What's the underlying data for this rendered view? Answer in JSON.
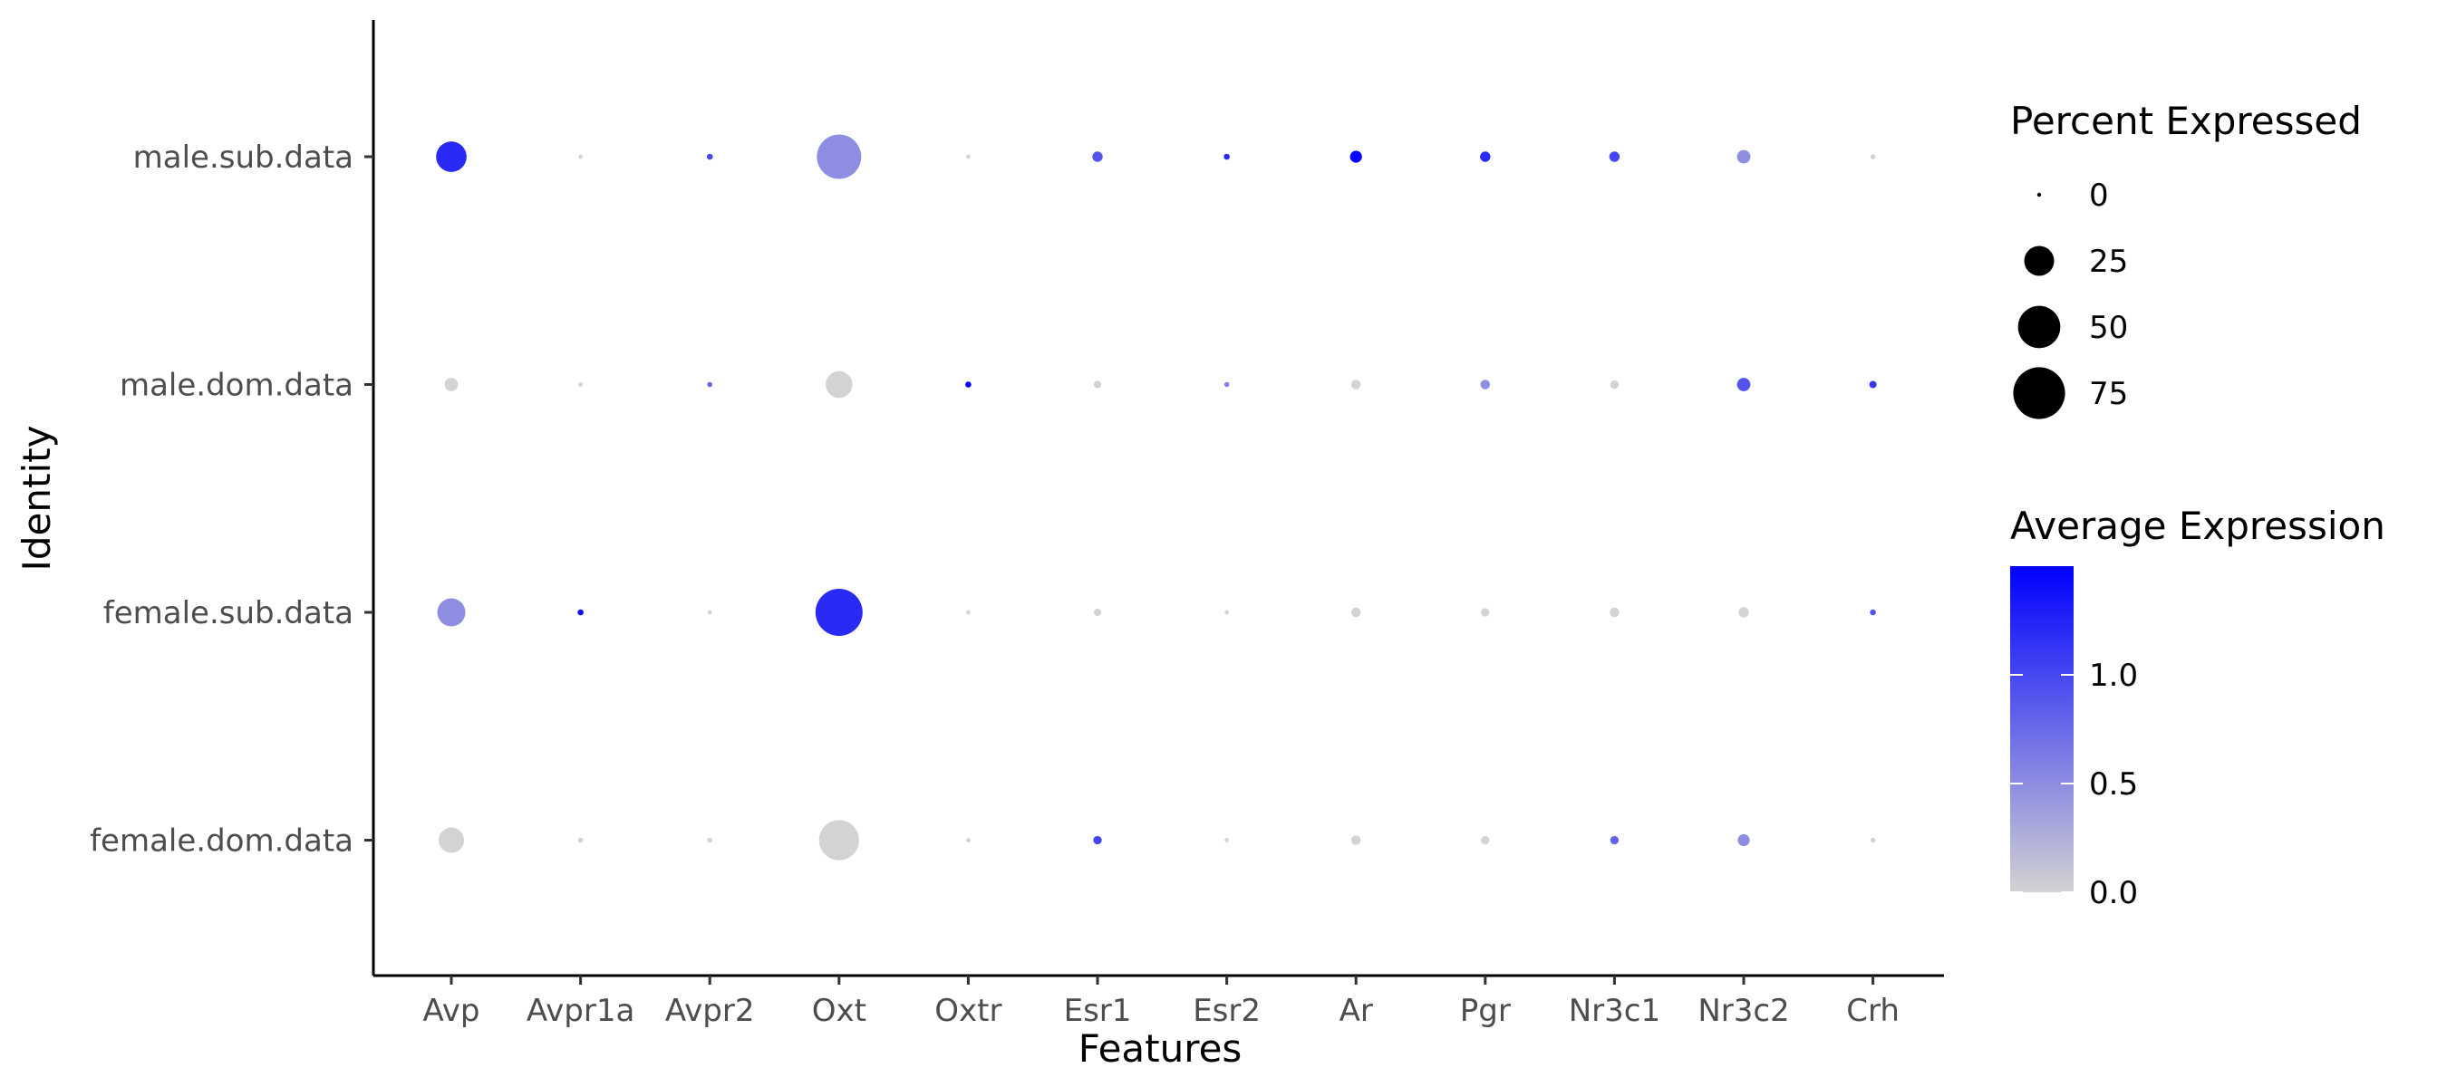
{
  "chart_data": {
    "type": "dot",
    "title": "",
    "xlabel": "Features",
    "ylabel": "Identity",
    "features": [
      "Avp",
      "Avpr1a",
      "Avpr2",
      "Oxt",
      "Oxtr",
      "Esr1",
      "Esr2",
      "Ar",
      "Pgr",
      "Nr3c1",
      "Nr3c2",
      "Crh"
    ],
    "identities": [
      "male.sub.data",
      "male.dom.data",
      "female.sub.data",
      "female.dom.data"
    ],
    "points": [
      {
        "identity": "male.sub.data",
        "feature": "Avp",
        "pct": 26,
        "avg": 1.2
      },
      {
        "identity": "male.sub.data",
        "feature": "Avpr1a",
        "pct": 0.5,
        "avg": 0.0
      },
      {
        "identity": "male.sub.data",
        "feature": "Avpr2",
        "pct": 1,
        "avg": 1.0
      },
      {
        "identity": "male.sub.data",
        "feature": "Oxt",
        "pct": 55,
        "avg": 0.5
      },
      {
        "identity": "male.sub.data",
        "feature": "Oxtr",
        "pct": 0.5,
        "avg": 0.0
      },
      {
        "identity": "male.sub.data",
        "feature": "Esr1",
        "pct": 3,
        "avg": 0.9
      },
      {
        "identity": "male.sub.data",
        "feature": "Esr2",
        "pct": 1,
        "avg": 1.2
      },
      {
        "identity": "male.sub.data",
        "feature": "Ar",
        "pct": 4,
        "avg": 1.5
      },
      {
        "identity": "male.sub.data",
        "feature": "Pgr",
        "pct": 3,
        "avg": 1.2
      },
      {
        "identity": "male.sub.data",
        "feature": "Nr3c1",
        "pct": 3,
        "avg": 1.0
      },
      {
        "identity": "male.sub.data",
        "feature": "Nr3c2",
        "pct": 5,
        "avg": 0.5
      },
      {
        "identity": "male.sub.data",
        "feature": "Crh",
        "pct": 0.7,
        "avg": 0.0
      },
      {
        "identity": "male.dom.data",
        "feature": "Avp",
        "pct": 5,
        "avg": 0.0
      },
      {
        "identity": "male.dom.data",
        "feature": "Avpr1a",
        "pct": 0.5,
        "avg": 0.0
      },
      {
        "identity": "male.dom.data",
        "feature": "Avpr2",
        "pct": 0.7,
        "avg": 0.8
      },
      {
        "identity": "male.dom.data",
        "feature": "Oxt",
        "pct": 20,
        "avg": 0.0
      },
      {
        "identity": "male.dom.data",
        "feature": "Oxtr",
        "pct": 1,
        "avg": 1.5
      },
      {
        "identity": "male.dom.data",
        "feature": "Esr1",
        "pct": 1.5,
        "avg": 0.0
      },
      {
        "identity": "male.dom.data",
        "feature": "Esr2",
        "pct": 0.7,
        "avg": 0.6
      },
      {
        "identity": "male.dom.data",
        "feature": "Ar",
        "pct": 2.5,
        "avg": 0.0
      },
      {
        "identity": "male.dom.data",
        "feature": "Pgr",
        "pct": 2.5,
        "avg": 0.5
      },
      {
        "identity": "male.dom.data",
        "feature": "Nr3c1",
        "pct": 2,
        "avg": 0.0
      },
      {
        "identity": "male.dom.data",
        "feature": "Nr3c2",
        "pct": 5,
        "avg": 0.9
      },
      {
        "identity": "male.dom.data",
        "feature": "Crh",
        "pct": 1.5,
        "avg": 1.1
      },
      {
        "identity": "female.sub.data",
        "feature": "Avp",
        "pct": 22,
        "avg": 0.5
      },
      {
        "identity": "female.sub.data",
        "feature": "Avpr1a",
        "pct": 1,
        "avg": 1.4
      },
      {
        "identity": "female.sub.data",
        "feature": "Avpr2",
        "pct": 0.5,
        "avg": 0.0
      },
      {
        "identity": "female.sub.data",
        "feature": "Oxt",
        "pct": 62,
        "avg": 1.2
      },
      {
        "identity": "female.sub.data",
        "feature": "Oxtr",
        "pct": 0.5,
        "avg": 0.0
      },
      {
        "identity": "female.sub.data",
        "feature": "Esr1",
        "pct": 1.5,
        "avg": 0.0
      },
      {
        "identity": "female.sub.data",
        "feature": "Esr2",
        "pct": 0.5,
        "avg": 0.0
      },
      {
        "identity": "female.sub.data",
        "feature": "Ar",
        "pct": 2.5,
        "avg": 0.0
      },
      {
        "identity": "female.sub.data",
        "feature": "Pgr",
        "pct": 2,
        "avg": 0.0
      },
      {
        "identity": "female.sub.data",
        "feature": "Nr3c1",
        "pct": 2.5,
        "avg": 0.0
      },
      {
        "identity": "female.sub.data",
        "feature": "Nr3c2",
        "pct": 3,
        "avg": 0.0
      },
      {
        "identity": "female.sub.data",
        "feature": "Crh",
        "pct": 1,
        "avg": 0.9
      },
      {
        "identity": "female.dom.data",
        "feature": "Avp",
        "pct": 18,
        "avg": 0.0
      },
      {
        "identity": "female.dom.data",
        "feature": "Avpr1a",
        "pct": 0.7,
        "avg": 0.0
      },
      {
        "identity": "female.dom.data",
        "feature": "Avpr2",
        "pct": 0.7,
        "avg": 0.0
      },
      {
        "identity": "female.dom.data",
        "feature": "Oxt",
        "pct": 45,
        "avg": 0.0
      },
      {
        "identity": "female.dom.data",
        "feature": "Oxtr",
        "pct": 0.5,
        "avg": 0.0
      },
      {
        "identity": "female.dom.data",
        "feature": "Esr1",
        "pct": 2,
        "avg": 1.0
      },
      {
        "identity": "female.dom.data",
        "feature": "Esr2",
        "pct": 0.5,
        "avg": 0.0
      },
      {
        "identity": "female.dom.data",
        "feature": "Ar",
        "pct": 2.5,
        "avg": 0.0
      },
      {
        "identity": "female.dom.data",
        "feature": "Pgr",
        "pct": 2,
        "avg": 0.0
      },
      {
        "identity": "female.dom.data",
        "feature": "Nr3c1",
        "pct": 2,
        "avg": 0.8
      },
      {
        "identity": "female.dom.data",
        "feature": "Nr3c2",
        "pct": 4,
        "avg": 0.5
      },
      {
        "identity": "female.dom.data",
        "feature": "Crh",
        "pct": 0.7,
        "avg": 0.0
      }
    ],
    "size_legend": {
      "title": "Percent Expressed",
      "values": [
        0,
        25,
        50,
        75
      ],
      "labels": [
        "0",
        "25",
        "50",
        "75"
      ]
    },
    "color_legend": {
      "title": "Average Expression",
      "range": [
        0,
        1.5
      ],
      "ticks": [
        0.0,
        0.5,
        1.0
      ],
      "labels": [
        "0.0",
        "0.5",
        "1.0"
      ],
      "low_color": "#d3d3d3",
      "high_color": "#0000ff"
    },
    "grid": false,
    "legend_position": "right"
  }
}
